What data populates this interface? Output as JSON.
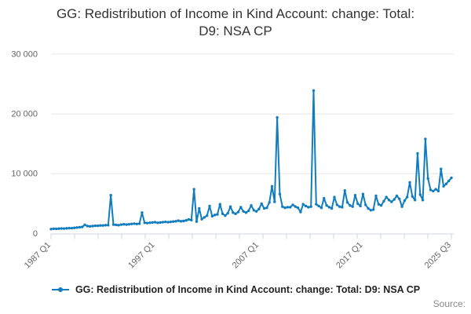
{
  "title": "GG: Redistribution of Income in Kind Account: change: Total: D9: NSA CP",
  "legend": {
    "label": "GG: Redistribution of Income in Kind Account: change: Total: D9: NSA CP"
  },
  "source_label": "Source:",
  "colors": {
    "series": "#127DBE",
    "grid": "#e6e6e6",
    "axis_line": "#ccd6eb",
    "tick_label": "#666666",
    "title_text": "#333333"
  },
  "chart_data": {
    "type": "line",
    "title": "GG: Redistribution of Income in Kind Account: change: Total: D9: NSA CP",
    "x_start": "1987 Q1",
    "x_end": "2025 Q3",
    "frequency": "quarterly",
    "ylim": [
      0,
      32000
    ],
    "grid": "horizontal",
    "legend_position": "bottom",
    "x_tick_labels": [
      {
        "label": "1987 Q1",
        "index": 0
      },
      {
        "label": "1997 Q1",
        "index": 40
      },
      {
        "label": "2007 Q1",
        "index": 80
      },
      {
        "label": "2017 Q1",
        "index": 120
      },
      {
        "label": "2025 Q3",
        "index": 154
      }
    ],
    "y_ticks": [
      {
        "value": 0,
        "label": "0"
      },
      {
        "value": 10000,
        "label": "10 000"
      },
      {
        "value": 20000,
        "label": "20 000"
      },
      {
        "value": 30000,
        "label": "30 000"
      }
    ],
    "values": [
      750,
      800,
      780,
      820,
      850,
      830,
      870,
      900,
      900,
      950,
      1000,
      1050,
      1100,
      1450,
      1250,
      1200,
      1250,
      1300,
      1300,
      1350,
      1350,
      1400,
      1400,
      6400,
      1500,
      1450,
      1400,
      1500,
      1550,
      1500,
      1550,
      1600,
      1650,
      1600,
      1650,
      3500,
      1800,
      1750,
      1800,
      1850,
      1900,
      1800,
      1850,
      1900,
      1950,
      1900,
      1950,
      2000,
      2050,
      2150,
      2050,
      2100,
      2200,
      2350,
      2250,
      7400,
      2000,
      4200,
      2400,
      2700,
      3000,
      4600,
      2900,
      3100,
      3200,
      4900,
      3300,
      3000,
      3400,
      4500,
      3500,
      3300,
      3600,
      4400,
      3700,
      3500,
      3800,
      4700,
      3900,
      3700,
      4100,
      5000,
      4200,
      4300,
      5200,
      7900,
      5300,
      19400,
      6600,
      4500,
      4300,
      4400,
      4400,
      4800,
      4500,
      4300,
      3600,
      4900,
      4600,
      4400,
      4500,
      23900,
      4900,
      4600,
      4300,
      5900,
      4700,
      4400,
      4200,
      6100,
      4800,
      4500,
      4400,
      7200,
      5200,
      4700,
      4500,
      6400,
      5000,
      4600,
      6600,
      4800,
      4200,
      3900,
      4000,
      6300,
      4900,
      4700,
      5400,
      6100,
      5600,
      5300,
      5700,
      6300,
      5800,
      4500,
      5500,
      6100,
      8550,
      6200,
      5600,
      13400,
      6500,
      5600,
      15800,
      9200,
      7300,
      7100,
      7400,
      7100,
      10800,
      7900,
      8300,
      8800,
      9300
    ]
  }
}
